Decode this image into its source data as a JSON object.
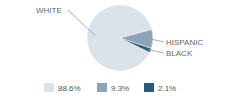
{
  "chart_data": {
    "type": "pie",
    "categories": [
      "WHITE",
      "HISPANIC",
      "BLACK"
    ],
    "values": [
      88.6,
      9.3,
      2.1
    ],
    "value_labels": [
      "88.6%",
      "9.3%",
      "2.1%"
    ],
    "colors": [
      "#dbe2ea",
      "#8ea3b7",
      "#2e5b7a"
    ],
    "legend": "bottom"
  }
}
